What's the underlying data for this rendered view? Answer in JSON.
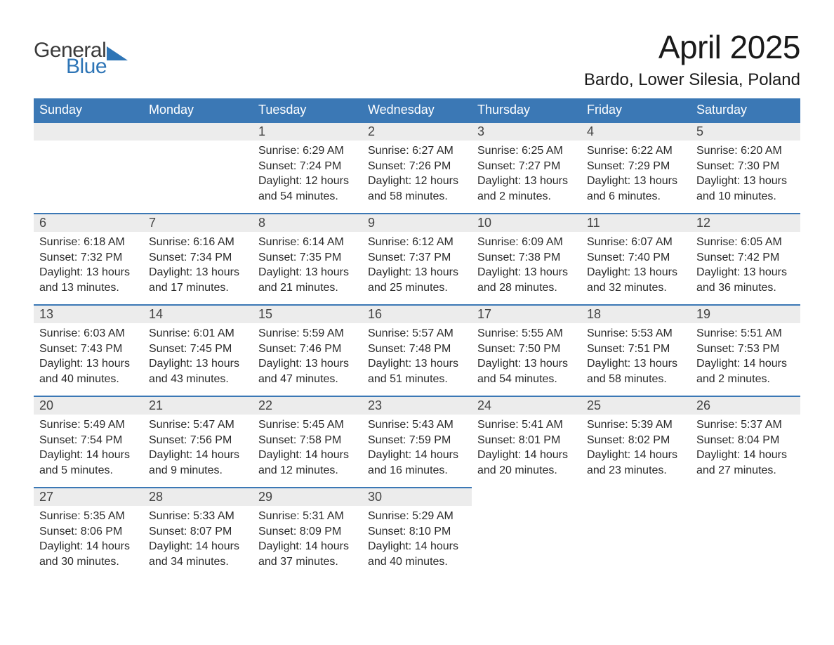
{
  "brand": {
    "line1": "General",
    "line2": "Blue",
    "text_color": "#3a3a3a",
    "accent_color": "#2e75b6"
  },
  "title": "April 2025",
  "location": "Bardo, Lower Silesia, Poland",
  "colors": {
    "header_bg": "#3b78b5",
    "header_text": "#ffffff",
    "daynum_bg": "#ececec",
    "daynum_border": "#3b78b5",
    "body_text": "#2a2a2a",
    "page_bg": "#ffffff"
  },
  "typography": {
    "title_fontsize": 46,
    "location_fontsize": 24,
    "header_fontsize": 18,
    "daynum_fontsize": 18,
    "cell_fontsize": 16
  },
  "weekdays": [
    "Sunday",
    "Monday",
    "Tuesday",
    "Wednesday",
    "Thursday",
    "Friday",
    "Saturday"
  ],
  "weeks": [
    [
      null,
      null,
      {
        "n": "1",
        "sunrise": "6:29 AM",
        "sunset": "7:24 PM",
        "dl1": "Daylight: 12 hours",
        "dl2": "and 54 minutes."
      },
      {
        "n": "2",
        "sunrise": "6:27 AM",
        "sunset": "7:26 PM",
        "dl1": "Daylight: 12 hours",
        "dl2": "and 58 minutes."
      },
      {
        "n": "3",
        "sunrise": "6:25 AM",
        "sunset": "7:27 PM",
        "dl1": "Daylight: 13 hours",
        "dl2": "and 2 minutes."
      },
      {
        "n": "4",
        "sunrise": "6:22 AM",
        "sunset": "7:29 PM",
        "dl1": "Daylight: 13 hours",
        "dl2": "and 6 minutes."
      },
      {
        "n": "5",
        "sunrise": "6:20 AM",
        "sunset": "7:30 PM",
        "dl1": "Daylight: 13 hours",
        "dl2": "and 10 minutes."
      }
    ],
    [
      {
        "n": "6",
        "sunrise": "6:18 AM",
        "sunset": "7:32 PM",
        "dl1": "Daylight: 13 hours",
        "dl2": "and 13 minutes."
      },
      {
        "n": "7",
        "sunrise": "6:16 AM",
        "sunset": "7:34 PM",
        "dl1": "Daylight: 13 hours",
        "dl2": "and 17 minutes."
      },
      {
        "n": "8",
        "sunrise": "6:14 AM",
        "sunset": "7:35 PM",
        "dl1": "Daylight: 13 hours",
        "dl2": "and 21 minutes."
      },
      {
        "n": "9",
        "sunrise": "6:12 AM",
        "sunset": "7:37 PM",
        "dl1": "Daylight: 13 hours",
        "dl2": "and 25 minutes."
      },
      {
        "n": "10",
        "sunrise": "6:09 AM",
        "sunset": "7:38 PM",
        "dl1": "Daylight: 13 hours",
        "dl2": "and 28 minutes."
      },
      {
        "n": "11",
        "sunrise": "6:07 AM",
        "sunset": "7:40 PM",
        "dl1": "Daylight: 13 hours",
        "dl2": "and 32 minutes."
      },
      {
        "n": "12",
        "sunrise": "6:05 AM",
        "sunset": "7:42 PM",
        "dl1": "Daylight: 13 hours",
        "dl2": "and 36 minutes."
      }
    ],
    [
      {
        "n": "13",
        "sunrise": "6:03 AM",
        "sunset": "7:43 PM",
        "dl1": "Daylight: 13 hours",
        "dl2": "and 40 minutes."
      },
      {
        "n": "14",
        "sunrise": "6:01 AM",
        "sunset": "7:45 PM",
        "dl1": "Daylight: 13 hours",
        "dl2": "and 43 minutes."
      },
      {
        "n": "15",
        "sunrise": "5:59 AM",
        "sunset": "7:46 PM",
        "dl1": "Daylight: 13 hours",
        "dl2": "and 47 minutes."
      },
      {
        "n": "16",
        "sunrise": "5:57 AM",
        "sunset": "7:48 PM",
        "dl1": "Daylight: 13 hours",
        "dl2": "and 51 minutes."
      },
      {
        "n": "17",
        "sunrise": "5:55 AM",
        "sunset": "7:50 PM",
        "dl1": "Daylight: 13 hours",
        "dl2": "and 54 minutes."
      },
      {
        "n": "18",
        "sunrise": "5:53 AM",
        "sunset": "7:51 PM",
        "dl1": "Daylight: 13 hours",
        "dl2": "and 58 minutes."
      },
      {
        "n": "19",
        "sunrise": "5:51 AM",
        "sunset": "7:53 PM",
        "dl1": "Daylight: 14 hours",
        "dl2": "and 2 minutes."
      }
    ],
    [
      {
        "n": "20",
        "sunrise": "5:49 AM",
        "sunset": "7:54 PM",
        "dl1": "Daylight: 14 hours",
        "dl2": "and 5 minutes."
      },
      {
        "n": "21",
        "sunrise": "5:47 AM",
        "sunset": "7:56 PM",
        "dl1": "Daylight: 14 hours",
        "dl2": "and 9 minutes."
      },
      {
        "n": "22",
        "sunrise": "5:45 AM",
        "sunset": "7:58 PM",
        "dl1": "Daylight: 14 hours",
        "dl2": "and 12 minutes."
      },
      {
        "n": "23",
        "sunrise": "5:43 AM",
        "sunset": "7:59 PM",
        "dl1": "Daylight: 14 hours",
        "dl2": "and 16 minutes."
      },
      {
        "n": "24",
        "sunrise": "5:41 AM",
        "sunset": "8:01 PM",
        "dl1": "Daylight: 14 hours",
        "dl2": "and 20 minutes."
      },
      {
        "n": "25",
        "sunrise": "5:39 AM",
        "sunset": "8:02 PM",
        "dl1": "Daylight: 14 hours",
        "dl2": "and 23 minutes."
      },
      {
        "n": "26",
        "sunrise": "5:37 AM",
        "sunset": "8:04 PM",
        "dl1": "Daylight: 14 hours",
        "dl2": "and 27 minutes."
      }
    ],
    [
      {
        "n": "27",
        "sunrise": "5:35 AM",
        "sunset": "8:06 PM",
        "dl1": "Daylight: 14 hours",
        "dl2": "and 30 minutes."
      },
      {
        "n": "28",
        "sunrise": "5:33 AM",
        "sunset": "8:07 PM",
        "dl1": "Daylight: 14 hours",
        "dl2": "and 34 minutes."
      },
      {
        "n": "29",
        "sunrise": "5:31 AM",
        "sunset": "8:09 PM",
        "dl1": "Daylight: 14 hours",
        "dl2": "and 37 minutes."
      },
      {
        "n": "30",
        "sunrise": "5:29 AM",
        "sunset": "8:10 PM",
        "dl1": "Daylight: 14 hours",
        "dl2": "and 40 minutes."
      },
      null,
      null,
      null
    ]
  ],
  "labels": {
    "sunrise_prefix": "Sunrise: ",
    "sunset_prefix": "Sunset: "
  }
}
